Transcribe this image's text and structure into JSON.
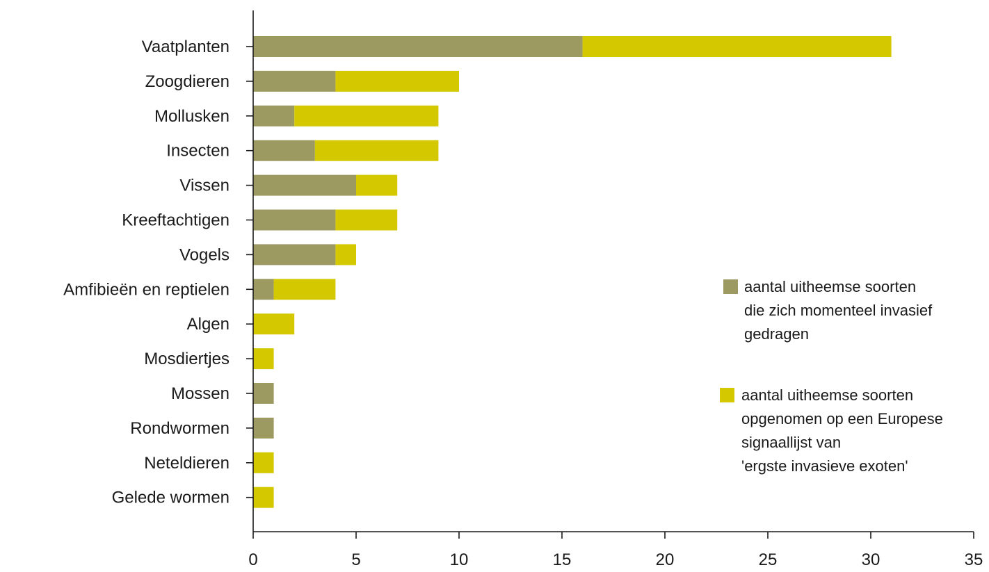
{
  "chart_data": {
    "type": "bar",
    "orientation": "horizontal",
    "stacked": true,
    "title": "",
    "xlabel": "",
    "ylabel": "",
    "xlim": [
      0,
      35
    ],
    "xticks": [
      0,
      5,
      10,
      15,
      20,
      25,
      30,
      35
    ],
    "grid": false,
    "legend_position": "right",
    "categories": [
      "Vaatplanten",
      "Zoogdieren",
      "Mollusken",
      "Insecten",
      "Vissen",
      "Kreeftachtigen",
      "Vogels",
      "Amfibieën en reptielen",
      "Algen",
      "Mosdiertjes",
      "Mossen",
      "Rondwormen",
      "Neteldieren",
      "Gelede wormen"
    ],
    "series": [
      {
        "name": "aantal uitheemse soorten die zich momenteel invasief gedragen",
        "legend_lines": [
          "aantal uitheemse soorten",
          "die zich momenteel invasief",
          "gedragen"
        ],
        "color": "#9c9a60",
        "values": [
          16,
          4,
          2,
          3,
          5,
          4,
          4,
          1,
          0,
          0,
          1,
          1,
          0,
          0
        ]
      },
      {
        "name": "aantal uitheemse soorten opgenomen op een Europese signaallijst van 'ergste invasieve exoten'",
        "legend_lines": [
          "aantal uitheemse soorten",
          "opgenomen op een Europese",
          "signaallijst van",
          "'ergste invasieve exoten'"
        ],
        "color": "#d4c800",
        "values": [
          15,
          6,
          7,
          6,
          2,
          3,
          1,
          3,
          2,
          1,
          0,
          0,
          1,
          1
        ]
      }
    ]
  }
}
